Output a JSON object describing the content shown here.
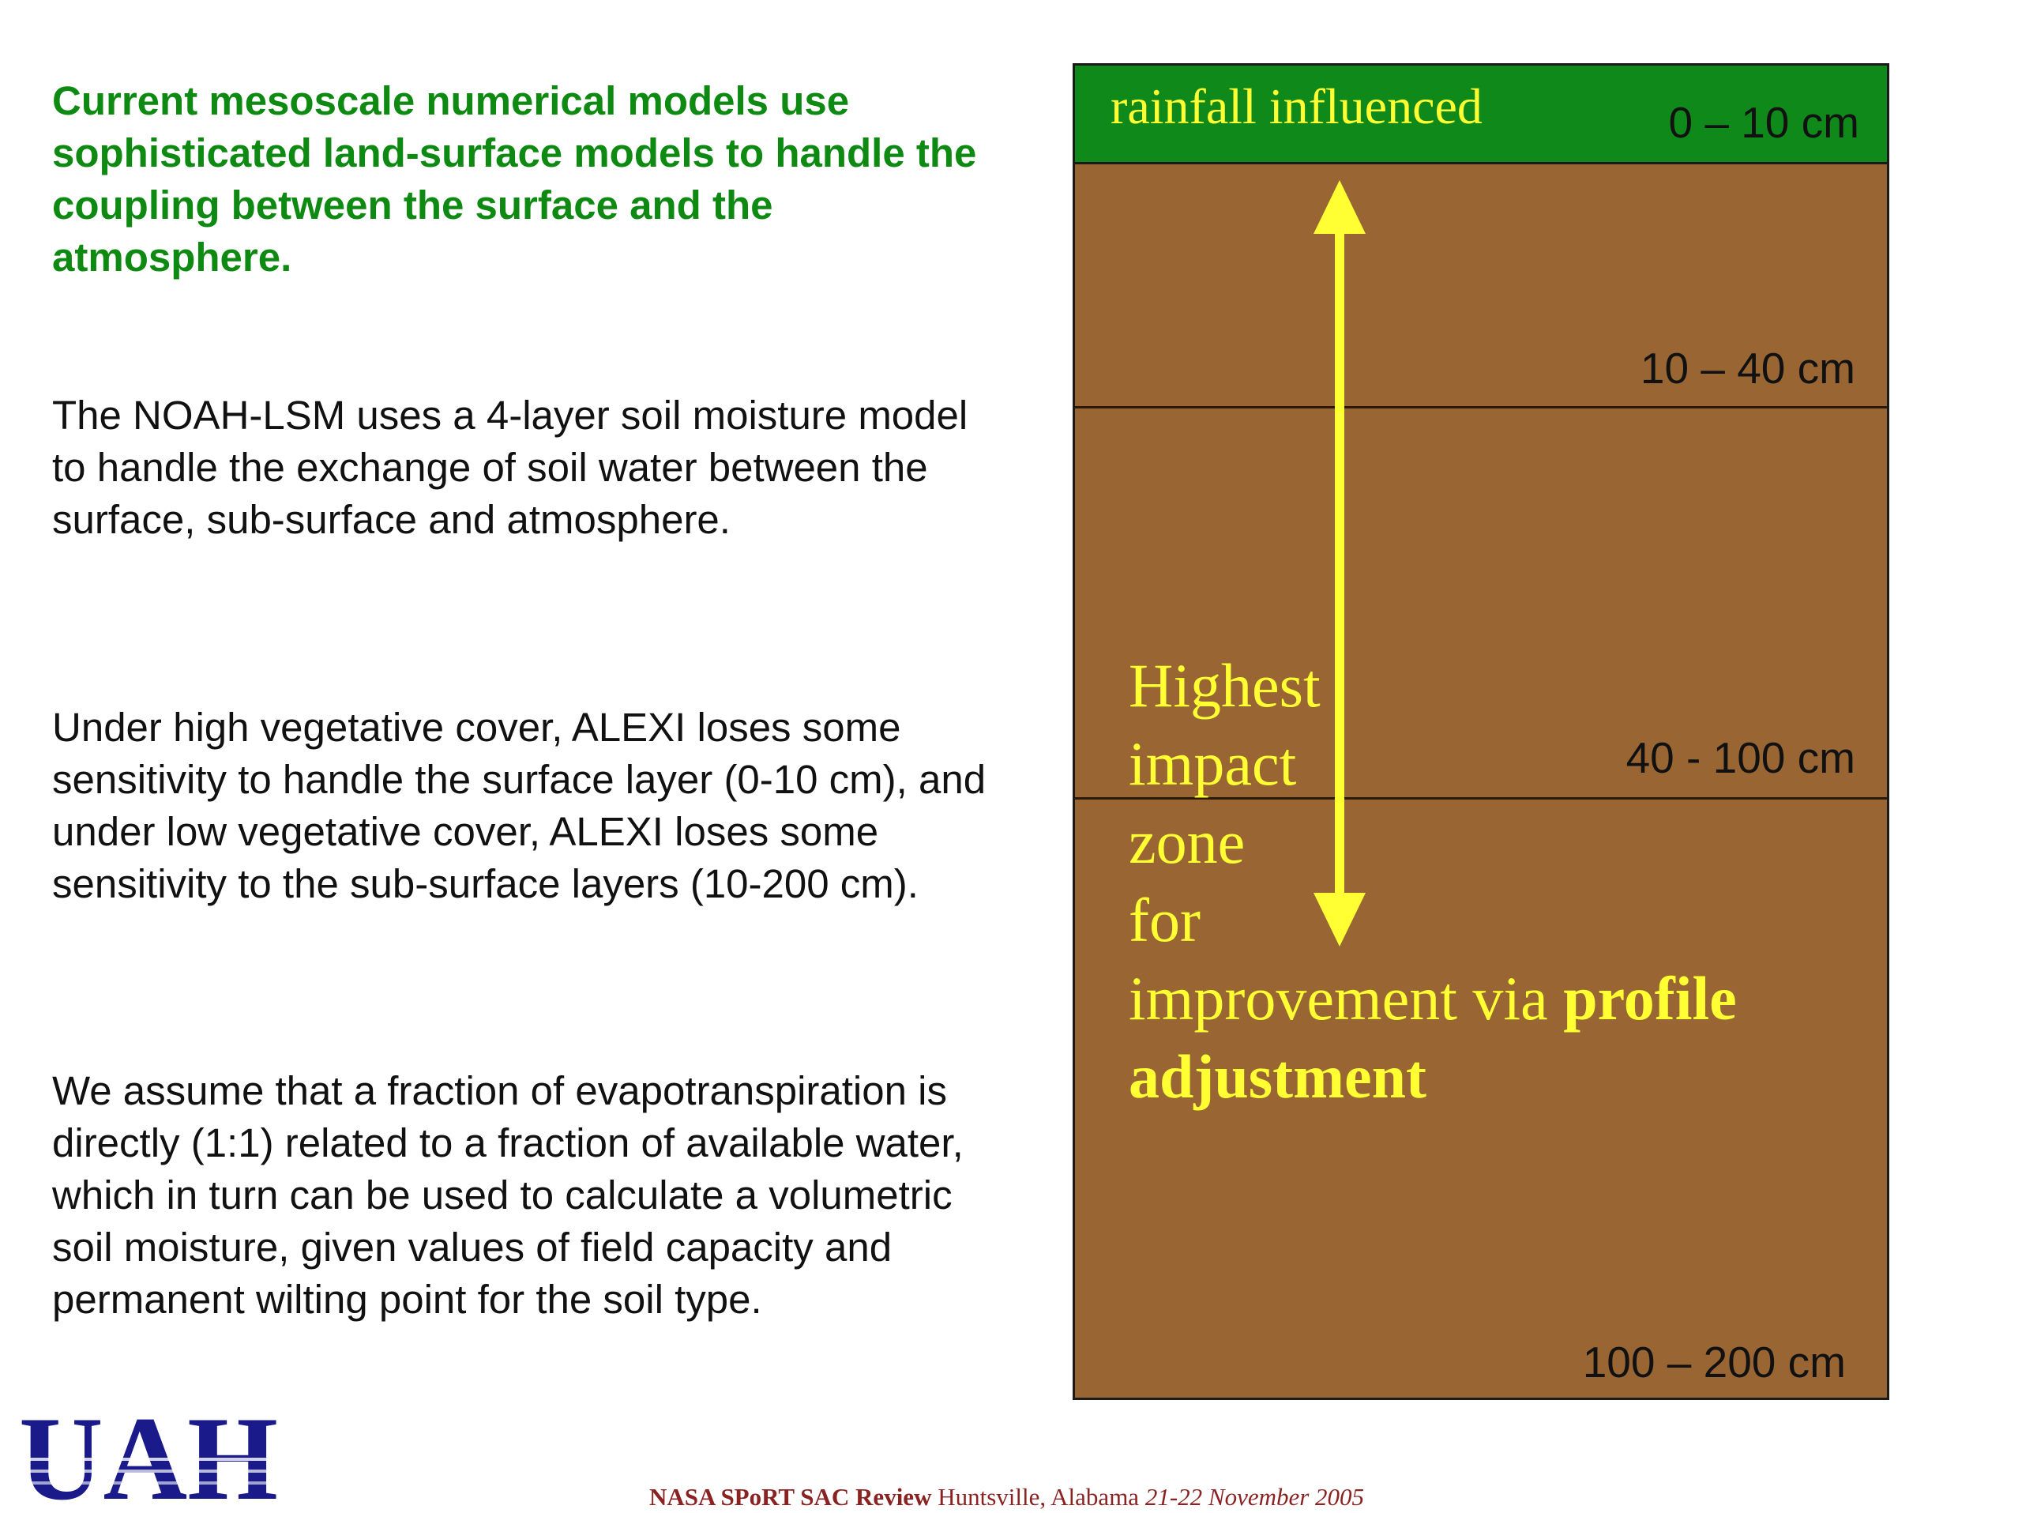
{
  "left_text": {
    "heading": "Current mesoscale numerical models use sophisticated land-surface models to handle the coupling between the surface and the atmosphere.",
    "paragraph1": "The NOAH-LSM uses a 4-layer soil moisture model to handle the exchange of soil water between the surface, sub-surface and atmosphere.",
    "paragraph2": "Under high vegetative cover, ALEXI loses some sensitivity to handle the surface layer (0-10 cm), and under low vegetative cover, ALEXI loses some sensitivity to the sub-surface layers (10-200 cm).",
    "paragraph3": "We assume that a fraction of evapotranspiration is directly (1:1) related to a fraction of available water, which in turn can be used to calculate a volumetric soil moisture, given values of field capacity and permanent wilting point for the soil type."
  },
  "diagram": {
    "top_band_label": "rainfall influenced",
    "layers": [
      {
        "depth": "0 – 10 cm"
      },
      {
        "depth": "10 – 40 cm"
      },
      {
        "depth": "40 - 100 cm"
      },
      {
        "depth": "100 – 200 cm"
      }
    ],
    "zone_label_lines": [
      "Highest",
      "impact",
      "zone",
      "for"
    ],
    "zone_label_last_plain": "improvement via ",
    "zone_label_last_bold": "profile",
    "zone_label_final_bold": "adjustment",
    "colors": {
      "soil": "#996633",
      "top_band": "#0f8a1a",
      "highlight": "#ffff33"
    }
  },
  "logo": {
    "text": "UAH",
    "color": "#1a1a8a"
  },
  "footer": {
    "bold": "NASA SPoRT SAC Review",
    "plain": " Huntsville, Alabama ",
    "italic": "21-22 November 2005"
  }
}
